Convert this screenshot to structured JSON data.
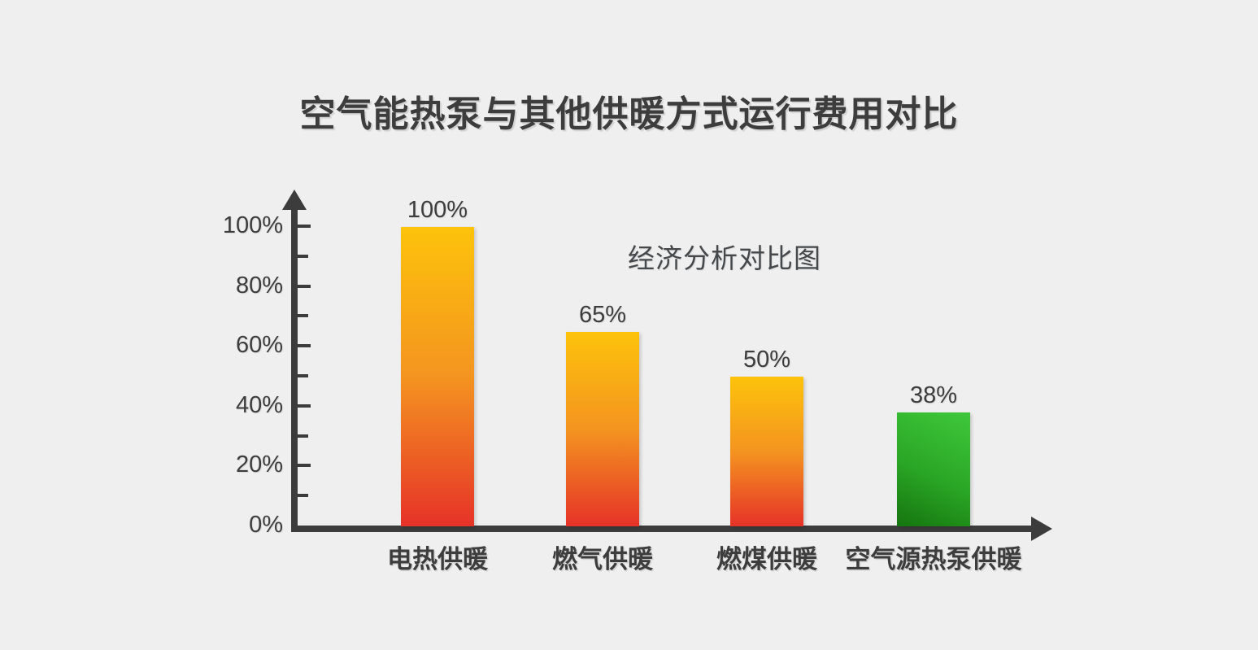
{
  "page": {
    "background": "#efefef",
    "text_color": "#3d3d3d",
    "axis_color": "#3c3c3c"
  },
  "title": "空气能热泵与其他供暖方式运行费用对比",
  "annotation": "经济分析对比图",
  "chart_data": {
    "type": "bar",
    "title": "空气能热泵与其他供暖方式运行费用对比",
    "annotation": "经济分析对比图",
    "categories": [
      "电热供暖",
      "燃气供暖",
      "燃煤供暖",
      "空气源热泵供暖"
    ],
    "values": [
      100,
      65,
      50,
      38
    ],
    "value_labels": [
      "100%",
      "65%",
      "50%",
      "38%"
    ],
    "xlabel": "",
    "ylabel": "",
    "ylim": [
      0,
      100
    ],
    "y_major_ticks": [
      0,
      20,
      40,
      60,
      80,
      100
    ],
    "y_major_tick_labels": [
      "0%",
      "20%",
      "40%",
      "60%",
      "80%",
      "100%"
    ],
    "y_minor_ticks": [
      10,
      30,
      50,
      70,
      90
    ],
    "grid": false,
    "legend": false,
    "highlight_index": 3,
    "colors": {
      "bar_gradient_top": "#fdc30b",
      "bar_gradient_mid": "#f49420",
      "bar_gradient_bottom": "#e63228",
      "highlight_gradient_top": "#3fc83c",
      "highlight_gradient_mid": "#2aa625",
      "highlight_gradient_bottom": "#15750f",
      "axis": "#3c3c3c",
      "text": "#3d3d3d",
      "background": "#efefef"
    }
  }
}
